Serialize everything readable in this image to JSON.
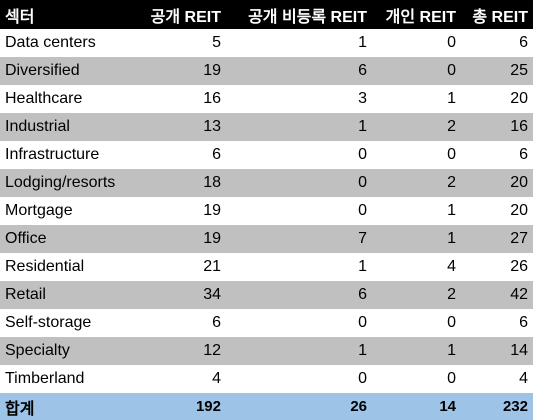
{
  "header": {
    "sector": "섹터",
    "public": "공개 REIT",
    "public_non_listed": "공개 비등록 REIT",
    "private": "개인 REIT",
    "total": "총 REIT"
  },
  "rows": [
    {
      "sector": "Data centers",
      "public": "5",
      "public_non_listed": "1",
      "private": "0",
      "total": "6"
    },
    {
      "sector": "Diversified",
      "public": "19",
      "public_non_listed": "6",
      "private": "0",
      "total": "25"
    },
    {
      "sector": "Healthcare",
      "public": "16",
      "public_non_listed": "3",
      "private": "1",
      "total": "20"
    },
    {
      "sector": "Industrial",
      "public": "13",
      "public_non_listed": "1",
      "private": "2",
      "total": "16"
    },
    {
      "sector": "Infrastructure",
      "public": "6",
      "public_non_listed": "0",
      "private": "0",
      "total": "6"
    },
    {
      "sector": "Lodging/resorts",
      "public": "18",
      "public_non_listed": "0",
      "private": "2",
      "total": "20"
    },
    {
      "sector": "Mortgage",
      "public": "19",
      "public_non_listed": "0",
      "private": "1",
      "total": "20"
    },
    {
      "sector": "Office",
      "public": "19",
      "public_non_listed": "7",
      "private": "1",
      "total": "27"
    },
    {
      "sector": "Residential",
      "public": "21",
      "public_non_listed": "1",
      "private": "4",
      "total": "26"
    },
    {
      "sector": "Retail",
      "public": "34",
      "public_non_listed": "6",
      "private": "2",
      "total": "42"
    },
    {
      "sector": "Self-storage",
      "public": "6",
      "public_non_listed": "0",
      "private": "0",
      "total": "6"
    },
    {
      "sector": "Specialty",
      "public": "12",
      "public_non_listed": "1",
      "private": "1",
      "total": "14"
    },
    {
      "sector": "Timberland",
      "public": "4",
      "public_non_listed": "0",
      "private": "0",
      "total": "4"
    }
  ],
  "footer": {
    "sector": "합계",
    "public": "192",
    "public_non_listed": "26",
    "private": "14",
    "total": "232"
  },
  "colors": {
    "header_bg": "#000000",
    "stripe_bg": "#c0c0c0",
    "total_bg": "#9dc3e6"
  }
}
